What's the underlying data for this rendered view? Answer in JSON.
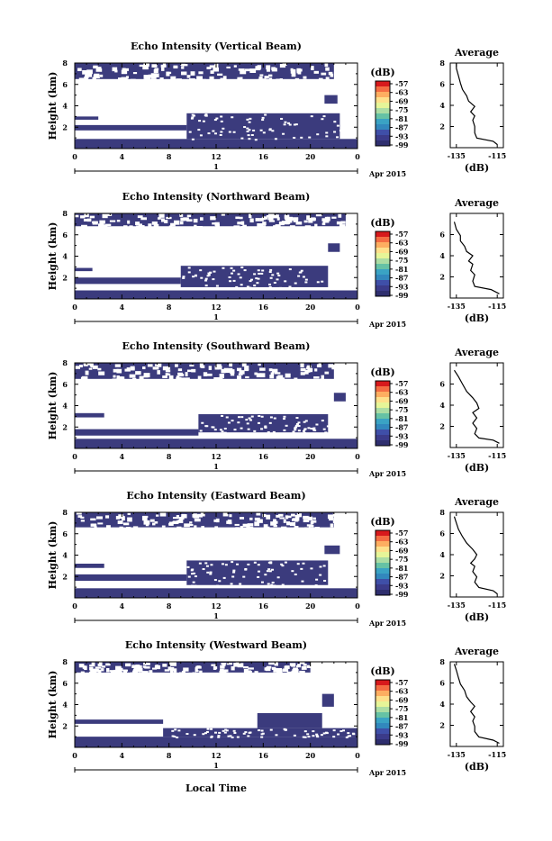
{
  "colorbar_colors": [
    "#d7191c",
    "#f46d43",
    "#fdae61",
    "#fee08b",
    "#e6f598",
    "#abdda4",
    "#66c2a5",
    "#3aa3c4",
    "#3288bd",
    "#3f4fa8",
    "#3b3b8a",
    "#2e2e6e"
  ],
  "panel_fill": "#3b3b7d",
  "chart_data": [
    {
      "type": "heatmap",
      "title": "Echo Intensity (Vertical Beam)",
      "ylabel": "Height (km)",
      "ylim": [
        0,
        8
      ],
      "yticks": [
        "8",
        "6",
        "4",
        "2"
      ],
      "xticks": [
        "0",
        "4",
        "8",
        "12",
        "16",
        "20",
        "0"
      ],
      "date_label": "1",
      "date_suffix": "Apr 2015",
      "colorbar": {
        "unit": "(dB)",
        "labels": [
          "-57",
          "-63",
          "-69",
          "-75",
          "-81",
          "-87",
          "-93",
          "-99"
        ]
      },
      "regions": [
        {
          "x": [
            0,
            24
          ],
          "y": [
            0,
            0.9
          ]
        },
        {
          "x": [
            9.5,
            22.5
          ],
          "y": [
            0.9,
            3.3
          ]
        },
        {
          "x": [
            0,
            9.5
          ],
          "y": [
            1.7,
            2.2
          ]
        },
        {
          "x": [
            0,
            2
          ],
          "y": [
            2.7,
            3.0
          ]
        },
        {
          "x": [
            0,
            22
          ],
          "y": [
            6.5,
            8.0
          ]
        },
        {
          "x": [
            21.2,
            22.3
          ],
          "y": [
            4.2,
            5.0
          ]
        }
      ],
      "average": {
        "title": "Average",
        "xlabel": "(dB)",
        "xticks": [
          "-135",
          "-115"
        ],
        "yticks": [
          "8",
          "6",
          "4",
          "2"
        ],
        "xlim": [
          -138,
          -112
        ],
        "points": [
          [
            -115,
            0.3
          ],
          [
            -117,
            0.6
          ],
          [
            -125,
            0.9
          ],
          [
            -126,
            1.4
          ],
          [
            -126,
            2.0
          ],
          [
            -127,
            2.6
          ],
          [
            -126,
            3.0
          ],
          [
            -128,
            3.4
          ],
          [
            -126,
            3.9
          ],
          [
            -129,
            4.4
          ],
          [
            -130,
            4.9
          ],
          [
            -132,
            5.5
          ],
          [
            -133,
            6.1
          ],
          [
            -134,
            6.8
          ],
          [
            -135,
            7.5
          ],
          [
            -135,
            8
          ]
        ]
      }
    },
    {
      "type": "heatmap",
      "title": "Echo Intensity (Northward Beam)",
      "ylabel": "Height (km)",
      "ylim": [
        0,
        8
      ],
      "yticks": [
        "8",
        "6",
        "4",
        "2"
      ],
      "xticks": [
        "0",
        "4",
        "8",
        "12",
        "16",
        "20",
        "0"
      ],
      "date_label": "1",
      "date_suffix": "Apr 2015",
      "colorbar": {
        "unit": "(dB)",
        "labels": [
          "-57",
          "-63",
          "-69",
          "-75",
          "-81",
          "-87",
          "-93",
          "-99"
        ]
      },
      "regions": [
        {
          "x": [
            0,
            24
          ],
          "y": [
            0,
            0.8
          ]
        },
        {
          "x": [
            9.0,
            21.5
          ],
          "y": [
            1.1,
            3.1
          ]
        },
        {
          "x": [
            0,
            9.0
          ],
          "y": [
            1.4,
            2.0
          ]
        },
        {
          "x": [
            0,
            1.5
          ],
          "y": [
            2.6,
            2.9
          ]
        },
        {
          "x": [
            0,
            23
          ],
          "y": [
            6.8,
            8.0
          ]
        },
        {
          "x": [
            21.5,
            22.5
          ],
          "y": [
            4.4,
            5.2
          ]
        }
      ],
      "average": {
        "title": "Average",
        "xlabel": "(dB)",
        "xticks": [
          "-135",
          "-115"
        ],
        "yticks": [
          "6",
          "4",
          "2"
        ],
        "xlim": [
          -138,
          -112
        ],
        "points": [
          [
            -114,
            0.4
          ],
          [
            -118,
            0.8
          ],
          [
            -126,
            1.1
          ],
          [
            -127,
            1.6
          ],
          [
            -126,
            2.2
          ],
          [
            -128,
            2.6
          ],
          [
            -127,
            3.2
          ],
          [
            -129,
            3.5
          ],
          [
            -127,
            4.0
          ],
          [
            -130,
            4.4
          ],
          [
            -131,
            4.9
          ],
          [
            -133,
            5.4
          ],
          [
            -133,
            5.9
          ],
          [
            -135,
            6.5
          ],
          [
            -136,
            7.2
          ]
        ]
      }
    },
    {
      "type": "heatmap",
      "title": "Echo Intensity (Southward Beam)",
      "ylabel": "Height (km)",
      "ylim": [
        0,
        8
      ],
      "yticks": [
        "8",
        "6",
        "4",
        "2"
      ],
      "xticks": [
        "0",
        "4",
        "8",
        "12",
        "16",
        "20",
        "0"
      ],
      "date_label": "1",
      "date_suffix": "Apr 2015",
      "colorbar": {
        "unit": "(dB)",
        "labels": [
          "-57",
          "-63",
          "-69",
          "-75",
          "-81",
          "-87",
          "-93",
          "-99"
        ]
      },
      "regions": [
        {
          "x": [
            0,
            24
          ],
          "y": [
            0,
            0.9
          ]
        },
        {
          "x": [
            10.5,
            21.5
          ],
          "y": [
            1.5,
            3.2
          ]
        },
        {
          "x": [
            0,
            10.5
          ],
          "y": [
            1.2,
            1.8
          ]
        },
        {
          "x": [
            0,
            2.5
          ],
          "y": [
            2.9,
            3.3
          ]
        },
        {
          "x": [
            0,
            22
          ],
          "y": [
            6.5,
            8.0
          ]
        },
        {
          "x": [
            22,
            23
          ],
          "y": [
            4.4,
            5.2
          ]
        }
      ],
      "average": {
        "title": "Average",
        "xlabel": "(dB)",
        "xticks": [
          "-135",
          "-115"
        ],
        "yticks": [
          "6",
          "4",
          "2"
        ],
        "xlim": [
          -138,
          -112
        ],
        "points": [
          [
            -114,
            0.4
          ],
          [
            -117,
            0.7
          ],
          [
            -124,
            0.9
          ],
          [
            -126,
            1.3
          ],
          [
            -125,
            1.8
          ],
          [
            -127,
            2.3
          ],
          [
            -125,
            2.8
          ],
          [
            -127,
            3.3
          ],
          [
            -124,
            3.7
          ],
          [
            -125,
            4.2
          ],
          [
            -127,
            4.7
          ],
          [
            -130,
            5.3
          ],
          [
            -132,
            6.0
          ],
          [
            -134,
            6.7
          ],
          [
            -136,
            7.3
          ]
        ]
      }
    },
    {
      "type": "heatmap",
      "title": "Echo Intensity (Eastward Beam)",
      "ylabel": "Height (km)",
      "ylim": [
        0,
        8
      ],
      "yticks": [
        "8",
        "6",
        "4",
        "2"
      ],
      "xticks": [
        "0",
        "4",
        "8",
        "12",
        "16",
        "20",
        "0"
      ],
      "date_label": "1",
      "date_suffix": "Apr 2015",
      "colorbar": {
        "unit": "(dB)",
        "labels": [
          "-57",
          "-63",
          "-69",
          "-75",
          "-81",
          "-87",
          "-93",
          "-99"
        ]
      },
      "regions": [
        {
          "x": [
            0,
            24
          ],
          "y": [
            0,
            0.9
          ]
        },
        {
          "x": [
            9.5,
            21.5
          ],
          "y": [
            1.2,
            3.5
          ]
        },
        {
          "x": [
            0,
            9.5
          ],
          "y": [
            1.6,
            2.2
          ]
        },
        {
          "x": [
            0,
            2.5
          ],
          "y": [
            2.8,
            3.2
          ]
        },
        {
          "x": [
            0,
            22
          ],
          "y": [
            6.6,
            8.0
          ]
        },
        {
          "x": [
            21.2,
            22.5
          ],
          "y": [
            4.1,
            4.9
          ]
        }
      ],
      "average": {
        "title": "Average",
        "xlabel": "(dB)",
        "xticks": [
          "-135",
          "-115"
        ],
        "yticks": [
          "8",
          "6",
          "4",
          "2"
        ],
        "xlim": [
          -138,
          -112
        ],
        "points": [
          [
            -115,
            0.3
          ],
          [
            -117,
            0.6
          ],
          [
            -124,
            0.9
          ],
          [
            -126,
            1.4
          ],
          [
            -125,
            1.9
          ],
          [
            -127,
            2.4
          ],
          [
            -126,
            2.9
          ],
          [
            -128,
            3.2
          ],
          [
            -126,
            3.6
          ],
          [
            -125,
            4.0
          ],
          [
            -127,
            4.5
          ],
          [
            -130,
            5.1
          ],
          [
            -132,
            5.7
          ],
          [
            -134,
            6.4
          ],
          [
            -135,
            7.0
          ],
          [
            -136,
            7.6
          ]
        ]
      }
    },
    {
      "type": "heatmap",
      "title": "Echo Intensity (Westward Beam)",
      "ylabel": "Height (km)",
      "ylim": [
        0,
        8
      ],
      "yticks": [
        "8",
        "6",
        "4",
        "2"
      ],
      "xticks": [
        "0",
        "4",
        "8",
        "12",
        "16",
        "20",
        "0"
      ],
      "date_label": "1",
      "date_suffix": "Apr 2015",
      "colorbar": {
        "unit": "(dB)",
        "labels": [
          "-57",
          "-63",
          "-69",
          "-75",
          "-81",
          "-87",
          "-93",
          "-99"
        ]
      },
      "regions": [
        {
          "x": [
            0,
            24
          ],
          "y": [
            0,
            1.0
          ]
        },
        {
          "x": [
            7.5,
            24
          ],
          "y": [
            1.0,
            1.8
          ]
        },
        {
          "x": [
            15.5,
            21
          ],
          "y": [
            1.8,
            3.2
          ]
        },
        {
          "x": [
            0,
            7.5
          ],
          "y": [
            2.2,
            2.6
          ]
        },
        {
          "x": [
            0,
            20
          ],
          "y": [
            7.0,
            8.0
          ]
        },
        {
          "x": [
            21,
            22
          ],
          "y": [
            3.8,
            5.0
          ]
        }
      ],
      "average": {
        "title": "Average",
        "xlabel": "(dB)",
        "xticks": [
          "-135",
          "-115"
        ],
        "yticks": [
          "8",
          "6",
          "4",
          "2"
        ],
        "xlim": [
          -138,
          -112
        ],
        "points": [
          [
            -114,
            0.3
          ],
          [
            -117,
            0.6
          ],
          [
            -124,
            0.9
          ],
          [
            -126,
            1.4
          ],
          [
            -126,
            1.9
          ],
          [
            -127,
            2.4
          ],
          [
            -126,
            2.8
          ],
          [
            -128,
            3.3
          ],
          [
            -126,
            3.8
          ],
          [
            -128,
            4.2
          ],
          [
            -130,
            4.7
          ],
          [
            -131,
            5.3
          ],
          [
            -133,
            5.9
          ],
          [
            -134,
            6.5
          ],
          [
            -135,
            7.2
          ],
          [
            -136,
            7.8
          ]
        ]
      }
    }
  ],
  "xaxis_label": "Local Time"
}
